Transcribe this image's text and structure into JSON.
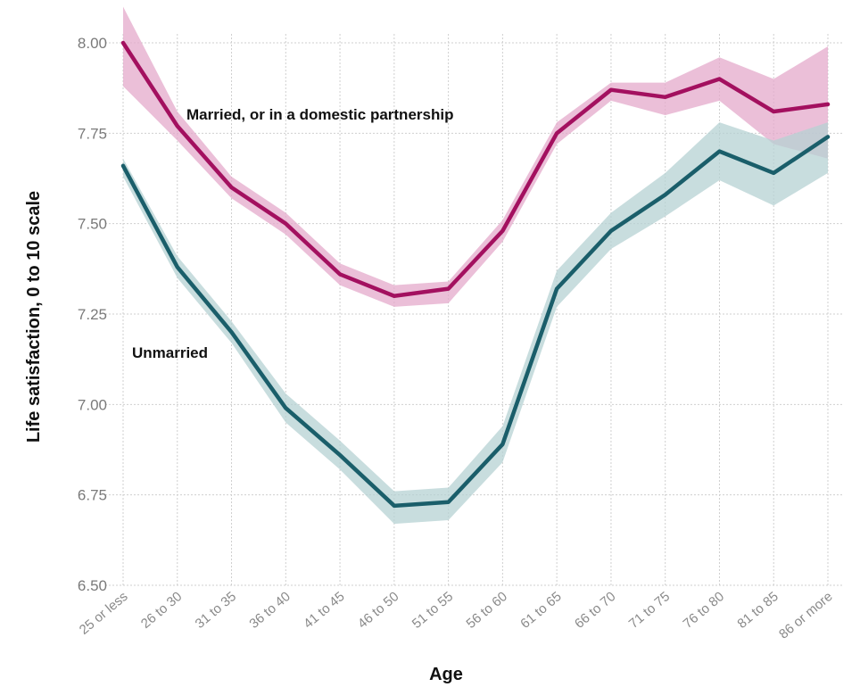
{
  "chart_data": {
    "type": "line",
    "title": "",
    "xlabel": "Age",
    "ylabel": "Life satisfaction, 0 to 10 scale",
    "ylim": [
      6.5,
      8.0
    ],
    "yticks": [
      "6.50",
      "6.75",
      "7.00",
      "7.25",
      "7.50",
      "7.75",
      "8.00"
    ],
    "grid": true,
    "categories": [
      "25 or less",
      "26 to 30",
      "31 to 35",
      "36 to 40",
      "41 to 45",
      "46 to 50",
      "51 to 55",
      "56 to 60",
      "61 to 65",
      "66 to 70",
      "71 to 75",
      "76 to 80",
      "81 to 85",
      "86 or more"
    ],
    "series": [
      {
        "name": "Married, or in a domestic partnership",
        "color": "#a3105f",
        "band_color": "#e4a9cb",
        "values": [
          8.0,
          7.77,
          7.6,
          7.5,
          7.36,
          7.3,
          7.32,
          7.48,
          7.75,
          7.87,
          7.85,
          7.9,
          7.81,
          7.83
        ],
        "upper": [
          8.1,
          7.81,
          7.63,
          7.53,
          7.39,
          7.33,
          7.34,
          7.51,
          7.78,
          7.89,
          7.89,
          7.96,
          7.9,
          7.99
        ],
        "lower": [
          7.88,
          7.73,
          7.57,
          7.47,
          7.33,
          7.27,
          7.28,
          7.45,
          7.72,
          7.84,
          7.8,
          7.84,
          7.72,
          7.68
        ]
      },
      {
        "name": "Unmarried",
        "color": "#1a5e6a",
        "band_color": "#b5d2d3",
        "values": [
          7.66,
          7.38,
          7.2,
          6.99,
          6.86,
          6.72,
          6.73,
          6.89,
          7.32,
          7.48,
          7.58,
          7.7,
          7.64,
          7.74
        ],
        "upper": [
          7.68,
          7.41,
          7.23,
          7.03,
          6.9,
          6.76,
          6.77,
          6.94,
          7.37,
          7.53,
          7.64,
          7.78,
          7.73,
          7.78
        ],
        "lower": [
          7.63,
          7.35,
          7.17,
          6.95,
          6.82,
          6.67,
          6.68,
          6.84,
          7.27,
          7.43,
          7.52,
          7.62,
          7.55,
          7.64
        ]
      }
    ]
  }
}
